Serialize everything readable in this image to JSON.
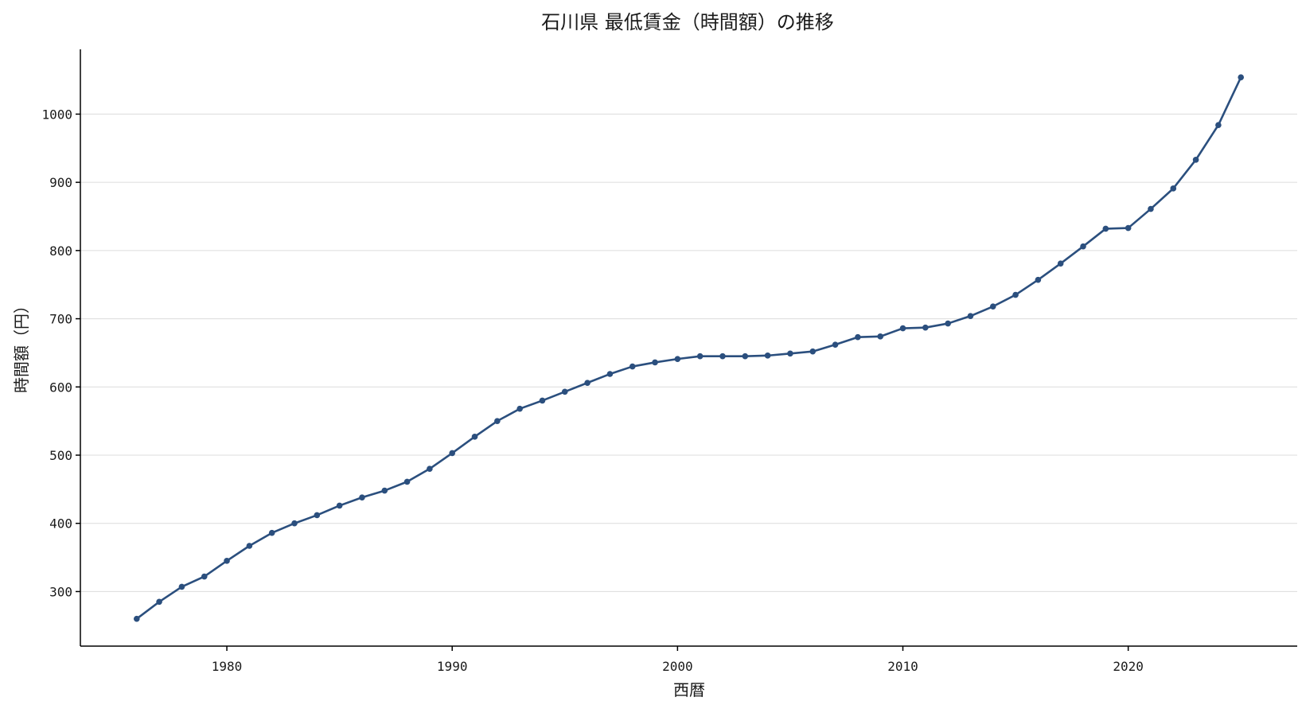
{
  "chart_data": {
    "type": "line",
    "title": "石川県 最低賃金（時間額）の推移",
    "xlabel": "西暦",
    "ylabel": "時間額（円）",
    "xlim": [
      1973.5,
      2027.5
    ],
    "ylim": [
      220,
      1095
    ],
    "xticks": [
      1980,
      1990,
      2000,
      2010,
      2020
    ],
    "yticks": [
      300,
      400,
      500,
      600,
      700,
      800,
      900,
      1000
    ],
    "grid": "horizontal",
    "line_color": "#2b4f7e",
    "series": [
      {
        "x": [
          1976,
          1977,
          1978,
          1979,
          1980,
          1981,
          1982,
          1983,
          1984,
          1985,
          1986,
          1987,
          1988,
          1989,
          1990,
          1991,
          1992,
          1993,
          1994,
          1995,
          1996,
          1997,
          1998,
          1999,
          2000,
          2001,
          2002,
          2003,
          2004,
          2005,
          2006,
          2007,
          2008,
          2009,
          2010,
          2011,
          2012,
          2013,
          2014,
          2015,
          2016,
          2017,
          2018,
          2019,
          2020,
          2021,
          2022,
          2023,
          2024,
          2025
        ],
        "values": [
          260,
          285,
          307,
          322,
          345,
          367,
          386,
          400,
          412,
          426,
          438,
          448,
          461,
          480,
          503,
          527,
          550,
          568,
          580,
          593,
          606,
          619,
          630,
          636,
          641,
          645,
          645,
          645,
          646,
          649,
          652,
          662,
          673,
          674,
          686,
          687,
          693,
          704,
          718,
          735,
          757,
          781,
          806,
          832,
          833,
          861,
          891,
          933,
          984,
          1054
        ]
      }
    ]
  }
}
